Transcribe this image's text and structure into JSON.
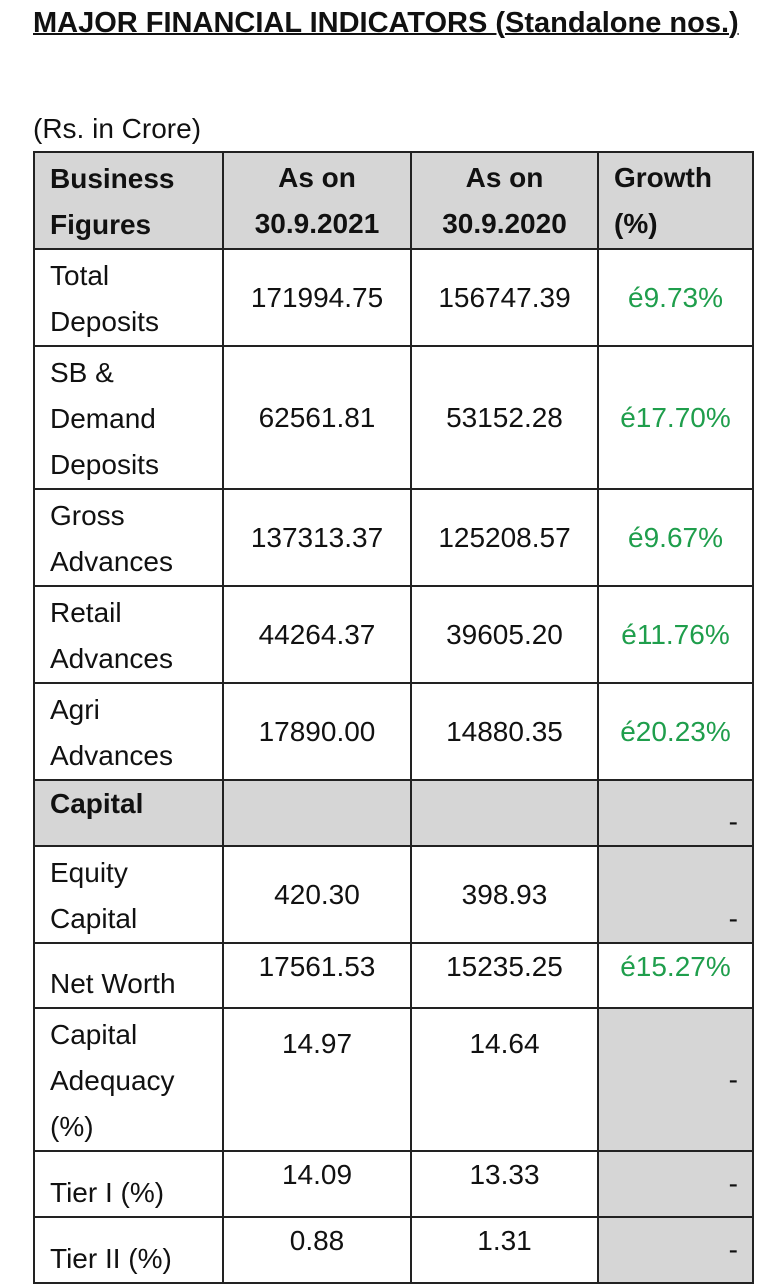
{
  "title": "MAJOR FINANCIAL INDICATORS (Standalone nos.)",
  "unit_note": "(Rs. in Crore)",
  "headers": {
    "c1_line1": "Business",
    "c1_line2": "Figures",
    "c2_line1": "As on",
    "c2_line2": "30.9.2021",
    "c3_line1": "As on",
    "c3_line2": "30.9.2020",
    "c4_line1": "Growth",
    "c4_line2": "(%)"
  },
  "rows": [
    {
      "label": "Total Deposits",
      "v2021": "171994.75",
      "v2020": "156747.39",
      "growth": "é9.73%"
    },
    {
      "label": "SB & Demand Deposits",
      "v2021": "62561.81",
      "v2020": "53152.28",
      "growth": "é17.70%"
    },
    {
      "label": "Gross Advances",
      "v2021": "137313.37",
      "v2020": "125208.57",
      "growth": "é9.67%"
    },
    {
      "label": "Retail Advances",
      "v2021": "44264.37",
      "v2020": "39605.20",
      "growth": "é11.76%"
    },
    {
      "label": "Agri Advances",
      "v2021": "17890.00",
      "v2020": "14880.35",
      "growth": "é20.23%"
    },
    {
      "label": "Capital",
      "v2021": "",
      "v2020": "",
      "growth": "-"
    },
    {
      "label": "Equity Capital",
      "v2021": "420.30",
      "v2020": "398.93",
      "growth": "-"
    },
    {
      "label": "Net Worth",
      "v2021": "17561.53",
      "v2020": "15235.25",
      "growth": "é15.27%"
    },
    {
      "label": "Capital Adequacy (%)",
      "v2021": "14.97",
      "v2020": "14.64",
      "growth": "-"
    },
    {
      "label": "Tier I (%)",
      "v2021": "14.09",
      "v2020": "13.33",
      "growth": "-"
    },
    {
      "label": "Tier II (%)",
      "v2021": "0.88",
      "v2020": "1.31",
      "growth": "-"
    }
  ],
  "colors": {
    "growth_text": "#1f9e4c",
    "shade": "#d6d6d6"
  }
}
